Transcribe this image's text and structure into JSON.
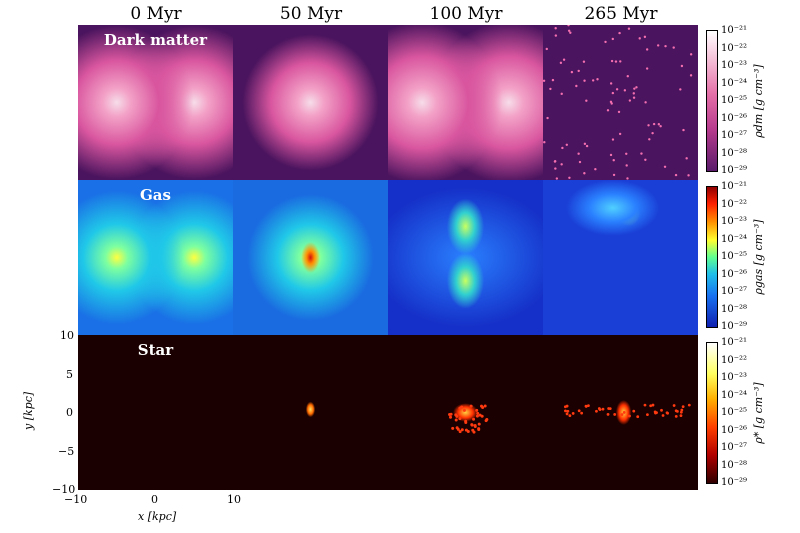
{
  "columns": [
    "0 Myr",
    "50 Myr",
    "100 Myr",
    "265 Myr"
  ],
  "rows": [
    {
      "label": "Dark matter",
      "colorbar_label": "ρdm [g cm⁻³]"
    },
    {
      "label": "Gas",
      "colorbar_label": "ρgas [g cm⁻³]"
    },
    {
      "label": "Star",
      "colorbar_label": "ρ* [g cm⁻³]"
    }
  ],
  "colorbar_ticks": [
    "10⁻²¹",
    "10⁻²²",
    "10⁻²³",
    "10⁻²⁴",
    "10⁻²⁵",
    "10⁻²⁶",
    "10⁻²⁷",
    "10⁻²⁸",
    "10⁻²⁹"
  ],
  "axes": {
    "x_label": "x [kpc]",
    "y_label": "y [kpc]",
    "x_ticks": [
      "−10",
      "0",
      "10"
    ],
    "y_ticks": [
      "10",
      "5",
      "0",
      "−5",
      "−10"
    ]
  },
  "colors": {
    "dm_background": "#4b145e",
    "gas_background": "#1a3fd6",
    "star_background": "#1a0000"
  }
}
